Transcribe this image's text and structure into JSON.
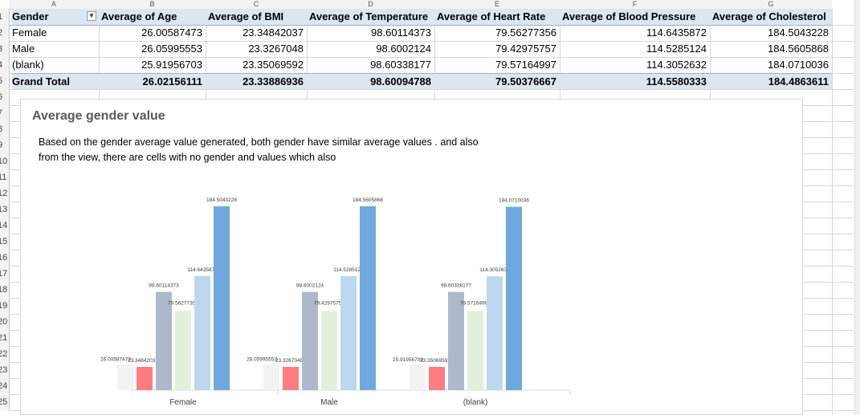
{
  "columns": [
    "A",
    "B",
    "C",
    "D",
    "E",
    "F",
    "G"
  ],
  "rows": [
    "1",
    "2",
    "3",
    "4",
    "5",
    "6",
    "7",
    "8",
    "9",
    "10",
    "11",
    "12",
    "13",
    "14",
    "15",
    "16",
    "17",
    "18",
    "19",
    "20",
    "21",
    "22",
    "23",
    "24",
    "25"
  ],
  "pivot": {
    "headers": [
      "Gender",
      "Average of Age",
      "Average of BMI",
      "Average of Temperature",
      "Average of Heart Rate",
      "Average of Blood Pressure",
      "Average of Cholesterol"
    ],
    "rows": [
      [
        "Female",
        "26.00587473",
        "23.34842037",
        "98.60114373",
        "79.56277356",
        "114.6435872",
        "184.5043228"
      ],
      [
        "Male",
        "26.05995553",
        "23.3267048",
        "98.6002124",
        "79.42975757",
        "114.5285124",
        "184.5605868"
      ],
      [
        "(blank)",
        "25.91956703",
        "23.35069592",
        "98.60338177",
        "79.57164997",
        "114.3052632",
        "184.0710036"
      ]
    ],
    "total": [
      "Grand Total",
      "26.02156111",
      "23.33886936",
      "98.60094788",
      "79.50376667",
      "114.5580333",
      "184.4863611"
    ]
  },
  "chart": {
    "title": "Average gender value",
    "description": "Based on the gender average value generated, both gender have similar average values . and also from the view, there are cells with no gender and values which also"
  },
  "chart_data": {
    "type": "bar",
    "title": "Average gender value",
    "categories": [
      "Female",
      "Male",
      "(blank)"
    ],
    "series": [
      {
        "values": [
          26.00587473,
          26.05995553,
          25.91956703
        ],
        "labels": [
          "26.00587473",
          "26.05995553",
          "25.91956703"
        ],
        "color": "#f2f2f2"
      },
      {
        "values": [
          23.34842037,
          23.3267048,
          23.35069592
        ],
        "labels": [
          "23.34842037",
          "23.3267048",
          "23.35069592"
        ],
        "color": "#ff7c80"
      },
      {
        "values": [
          98.60114373,
          98.6002124,
          98.60338177
        ],
        "labels": [
          "98.60114373",
          "98.6002124",
          "98.60338177"
        ],
        "color": "#adb9ca"
      },
      {
        "values": [
          79.56277356,
          79.42975757,
          79.57164997
        ],
        "labels": [
          "79.56277356",
          "79.42975757",
          "79.57164997"
        ],
        "color": "#e2efda"
      },
      {
        "values": [
          114.6435872,
          114.5285124,
          114.3052632
        ],
        "labels": [
          "114.6435872",
          "114.5285124",
          "114.3052632"
        ],
        "color": "#bdd7ee"
      },
      {
        "values": [
          184.5043228,
          184.5605868,
          184.0710036
        ],
        "labels": [
          "184.5043228",
          "184.5605868",
          "184.0710036"
        ],
        "color": "#6fa8dc"
      }
    ],
    "ylim": [
      0,
      184.5605868
    ],
    "legend": "none",
    "grid": false
  }
}
